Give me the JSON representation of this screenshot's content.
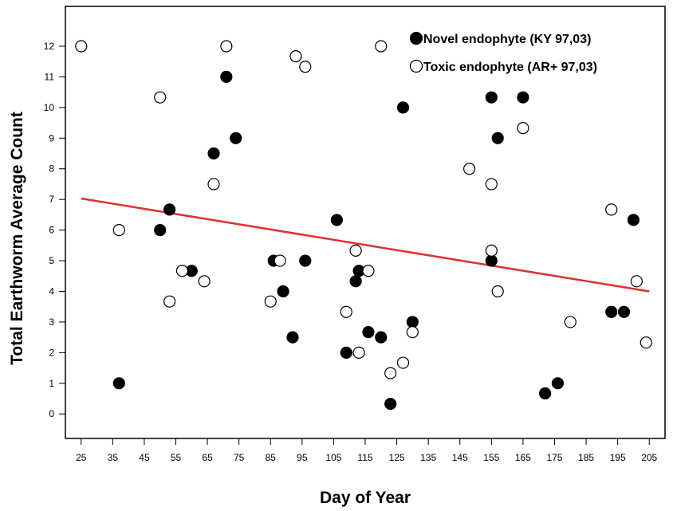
{
  "chart_data": {
    "type": "scatter",
    "title": "",
    "xlabel": "Day of Year",
    "ylabel": "Total Earthworm Average Count",
    "xlim": [
      20,
      210
    ],
    "ylim": [
      -0.8,
      13.3
    ],
    "x_ticks": [
      25,
      35,
      45,
      55,
      65,
      75,
      85,
      95,
      105,
      115,
      125,
      135,
      145,
      155,
      165,
      175,
      185,
      195,
      205
    ],
    "y_ticks": [
      0,
      1,
      2,
      3,
      4,
      5,
      6,
      7,
      8,
      9,
      10,
      11,
      12
    ],
    "grid": false,
    "legend_position": "top-right",
    "series": [
      {
        "name": "Novel endophyte (KY 97,03)",
        "marker": "filled-circle",
        "color": "#000000",
        "points": [
          [
            37,
            1.0
          ],
          [
            50,
            6.0
          ],
          [
            53,
            6.67
          ],
          [
            60,
            4.67
          ],
          [
            67,
            8.5
          ],
          [
            71,
            11.0
          ],
          [
            74,
            9.0
          ],
          [
            86,
            5.0
          ],
          [
            89,
            4.0
          ],
          [
            92,
            2.5
          ],
          [
            96,
            5.0
          ],
          [
            106,
            6.33
          ],
          [
            109,
            2.0
          ],
          [
            112,
            4.33
          ],
          [
            113,
            4.67
          ],
          [
            116,
            2.67
          ],
          [
            120,
            2.5
          ],
          [
            123,
            0.33
          ],
          [
            127,
            10.0
          ],
          [
            130,
            3.0
          ],
          [
            155,
            10.33
          ],
          [
            155,
            5.0
          ],
          [
            157,
            9.0
          ],
          [
            165,
            10.33
          ],
          [
            172,
            0.67
          ],
          [
            176,
            1.0
          ],
          [
            193,
            3.33
          ],
          [
            197,
            3.33
          ],
          [
            200,
            6.33
          ]
        ]
      },
      {
        "name": "Toxic endophyte (AR+  97,03)",
        "marker": "open-circle",
        "color": "#000000",
        "points": [
          [
            25,
            12.0
          ],
          [
            37,
            6.0
          ],
          [
            50,
            10.33
          ],
          [
            53,
            3.67
          ],
          [
            57,
            4.67
          ],
          [
            64,
            4.33
          ],
          [
            67,
            7.5
          ],
          [
            71,
            12.0
          ],
          [
            85,
            3.67
          ],
          [
            88,
            5.0
          ],
          [
            93,
            11.67
          ],
          [
            96,
            11.33
          ],
          [
            109,
            3.33
          ],
          [
            112,
            5.33
          ],
          [
            113,
            2.0
          ],
          [
            116,
            4.67
          ],
          [
            120,
            12.0
          ],
          [
            123,
            1.33
          ],
          [
            127,
            1.67
          ],
          [
            130,
            2.67
          ],
          [
            148,
            8.0
          ],
          [
            155,
            7.5
          ],
          [
            155,
            5.33
          ],
          [
            157,
            4.0
          ],
          [
            165,
            9.33
          ],
          [
            180,
            3.0
          ],
          [
            193,
            6.67
          ],
          [
            201,
            4.33
          ],
          [
            204,
            2.33
          ]
        ]
      }
    ],
    "trend_line": {
      "color": "#e03030",
      "points": [
        [
          25,
          7.03
        ],
        [
          205,
          4.0
        ]
      ]
    }
  }
}
